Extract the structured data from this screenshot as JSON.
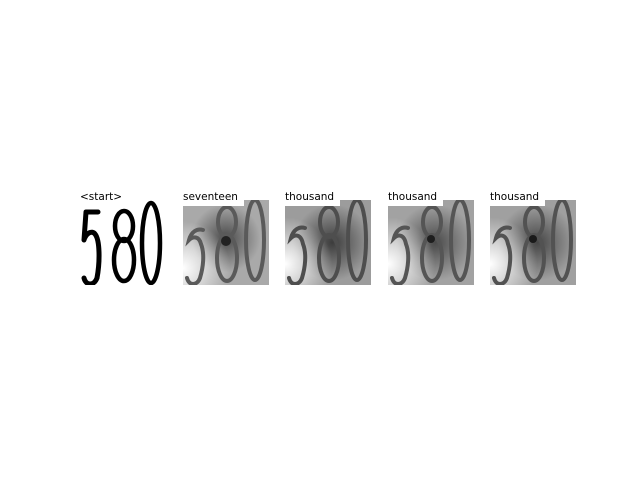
{
  "panels": [
    {
      "label": "<start>",
      "kind": "input-image"
    },
    {
      "label": "seventeen",
      "kind": "attention-map"
    },
    {
      "label": "thousand",
      "kind": "attention-map"
    },
    {
      "label": "thousand",
      "kind": "attention-map"
    },
    {
      "label": "thousand",
      "kind": "attention-map"
    }
  ],
  "digits_image": {
    "text": "580"
  }
}
